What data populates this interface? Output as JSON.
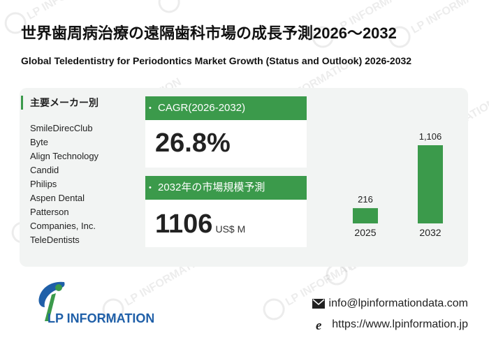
{
  "title_ja": "世界歯周病治療の遠隔歯科市場の成長予測2026～2032",
  "title_en": "Global Teledentistry for Periodontics Market Growth (Status and Outlook) 2026-2032",
  "makers": {
    "heading": "主要メーカー別",
    "items": [
      "SmileDirecClub",
      "Byte",
      "Align Technology",
      "Candid",
      "Philips",
      "Aspen Dental",
      "Patterson",
      "Companies, Inc.",
      "TeleDentists"
    ]
  },
  "cagr": {
    "label": "CAGR(2026-2032)",
    "value": "26.8%"
  },
  "market_size": {
    "label": "2032年の市場規模予測",
    "value": "1106",
    "unit": "US$ M"
  },
  "chart_data": {
    "type": "bar",
    "categories": [
      "2025",
      "2032"
    ],
    "values": [
      216,
      1106
    ],
    "value_labels": [
      "216",
      "1,106"
    ],
    "color": "#3b9a4b"
  },
  "brand": {
    "name": "LP INFORMATION",
    "email": "info@lpinformationdata.com",
    "website": "https://www.lpinformation.jp",
    "color_primary": "#1f5fa8",
    "color_accent": "#3b9a4b",
    "watermark_text": "LP INFORMATION"
  },
  "icons": {
    "email": "envelope-icon",
    "web": "browser-e-icon"
  }
}
